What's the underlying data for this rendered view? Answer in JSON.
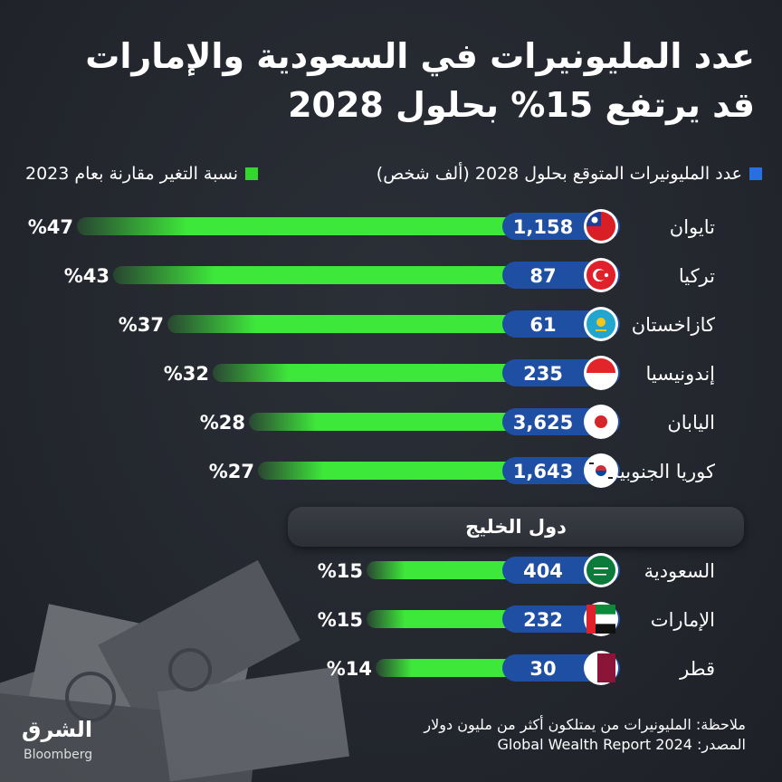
{
  "title": {
    "line1": "عدد المليونيرات في السعودية والإمارات",
    "line2": "قد يرتفع 15% بحلول 2028"
  },
  "legend": {
    "blue_label": "عدد المليونيرات المتوقع بحلول 2028  (ألف شخص)",
    "green_label": "نسبة التغير مقارنة بعام 2023"
  },
  "gulf_header": "دول الخليج",
  "note": {
    "line1": "ملاحظة: المليونيرات من يمتلكون أكثر من مليون دولار",
    "line2": "المصدر: Global Wealth Report 2024"
  },
  "logo": {
    "arabic": "الشرق",
    "latin": "Bloomberg"
  },
  "colors": {
    "green": "#3ee83a",
    "blue_pill": "#1f4fa3",
    "legend_blue": "#2a6fe0",
    "legend_green": "#35d52f"
  },
  "chart_data": {
    "type": "bar",
    "categories": [
      "تايوان",
      "تركيا",
      "كازاخستان",
      "إندونيسيا",
      "اليابان",
      "كوريا الجنوبية",
      "السعودية",
      "الإمارات",
      "قطر"
    ],
    "series": [
      {
        "name": "عدد المليونيرات المتوقع بحلول 2028  (ألف شخص)",
        "values": [
          1158,
          87,
          61,
          235,
          3625,
          1643,
          404,
          232,
          30
        ],
        "labels": [
          "1,158",
          "87",
          "61",
          "235",
          "3,625",
          "1,643",
          "404",
          "232",
          "30"
        ]
      },
      {
        "name": "نسبة التغير مقارنة بعام 2023",
        "values": [
          47,
          43,
          37,
          32,
          28,
          27,
          15,
          15,
          14
        ],
        "labels": [
          "%47",
          "%43",
          "%37",
          "%32",
          "%28",
          "%27",
          "%15",
          "%15",
          "%14"
        ]
      }
    ],
    "flags": [
      "taiwan-flag",
      "turkey-flag",
      "kazakhstan-flag",
      "indonesia-flag",
      "japan-flag",
      "south-korea-flag",
      "saudi-flag",
      "uae-flag",
      "qatar-flag"
    ],
    "groups": [
      {
        "name": "",
        "count": 6
      },
      {
        "name": "دول الخليج",
        "count": 3
      }
    ]
  }
}
